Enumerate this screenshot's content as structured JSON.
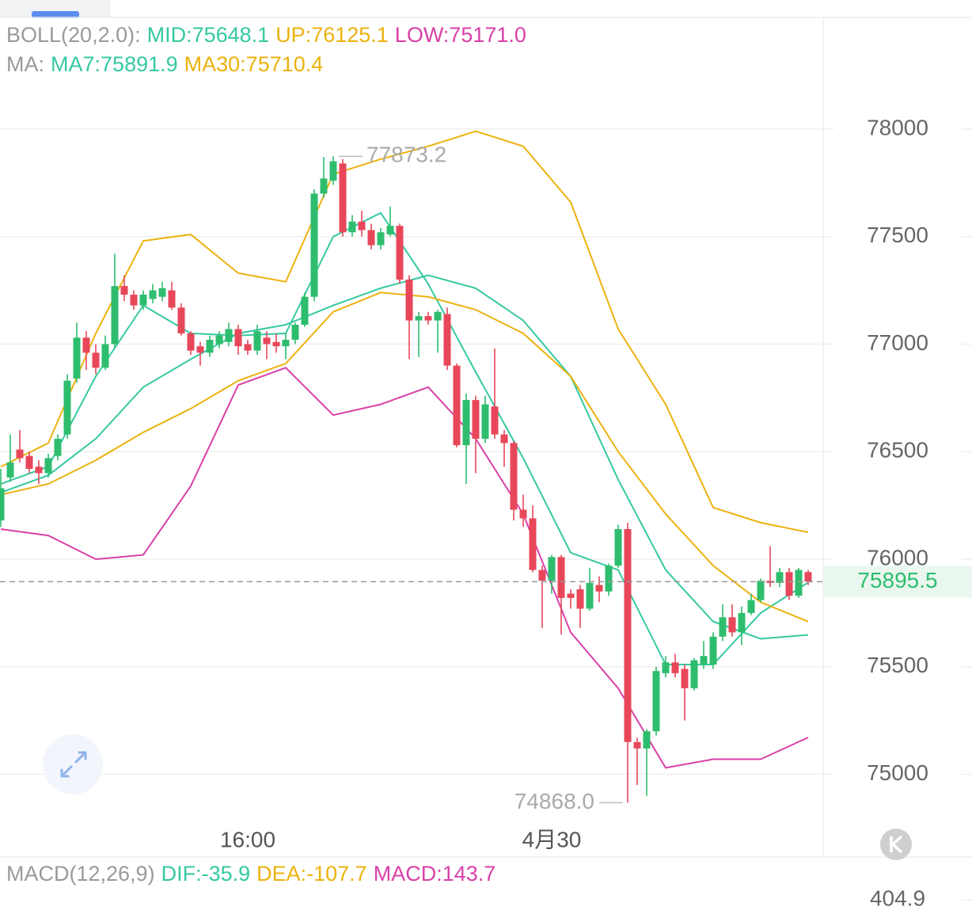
{
  "chart_data": {
    "type": "candlestick",
    "categories": [
      null,
      null,
      null,
      null,
      null,
      null,
      null,
      null,
      null,
      null,
      null,
      null,
      null,
      null,
      null,
      null,
      null,
      null,
      null,
      null,
      null,
      null,
      null,
      null,
      null,
      null,
      "16:00",
      null,
      null,
      null,
      null,
      null,
      null,
      null,
      null,
      null,
      null,
      null,
      null,
      null,
      null,
      null,
      null,
      null,
      null,
      null,
      null,
      null,
      null,
      null,
      null,
      null,
      null,
      null,
      null,
      null,
      null,
      null,
      "4月30",
      null,
      null,
      null,
      null,
      null,
      null,
      null,
      null,
      null,
      null,
      null,
      null,
      null,
      null,
      null,
      null,
      null,
      null,
      null,
      null,
      null,
      null,
      null,
      null,
      null,
      null,
      null
    ],
    "open": [
      76180,
      76380,
      76510,
      76480,
      76430,
      76400,
      76480,
      76580,
      76840,
      77030,
      76960,
      76890,
      77000,
      77270,
      77230,
      77180,
      77210,
      77220,
      77250,
      77170,
      77050,
      76990,
      76960,
      77000,
      77010,
      77070,
      77000,
      76970,
      77030,
      77010,
      76990,
      77020,
      77090,
      77220,
      77700,
      77760,
      77840,
      77520,
      77570,
      77530,
      77460,
      77510,
      77550,
      77300,
      77110,
      77130,
      77110,
      77140,
      76900,
      76530,
      76740,
      76560,
      76710,
      76580,
      76540,
      76230,
      76190,
      75950,
      75900,
      76010,
      75840,
      75860,
      75770,
      75880,
      75850,
      75970,
      76140,
      75150,
      75120,
      75200,
      75470,
      75520,
      75490,
      75400,
      75510,
      75510,
      75640,
      75730,
      75660,
      75750,
      75810,
      75900,
      75890,
      75940,
      75830,
      75940
    ],
    "high": [
      76420,
      76580,
      76600,
      76500,
      76460,
      76490,
      76580,
      76860,
      77100,
      77060,
      77000,
      77040,
      77420,
      77320,
      77250,
      77250,
      77280,
      77290,
      77290,
      77190,
      77060,
      77010,
      77040,
      77060,
      77100,
      77090,
      77020,
      77090,
      77060,
      77050,
      77050,
      77100,
      77240,
      77720,
      77870,
      77873.2,
      77860,
      77600,
      77620,
      77560,
      77540,
      77640,
      77560,
      77320,
      77150,
      77150,
      77160,
      77170,
      76910,
      76770,
      76760,
      76760,
      76980,
      76600,
      76550,
      76300,
      76250,
      75970,
      76020,
      76020,
      75860,
      75880,
      75960,
      75920,
      75980,
      76160,
      76170,
      75170,
      75210,
      75500,
      75550,
      75560,
      75510,
      75540,
      75620,
      75660,
      75790,
      75790,
      75780,
      75840,
      75910,
      76060,
      75960,
      75960,
      75960,
      75950
    ],
    "low": [
      76150,
      76360,
      76450,
      76400,
      76350,
      76380,
      76460,
      76560,
      76820,
      76880,
      76860,
      76880,
      76980,
      77200,
      77160,
      77160,
      77190,
      77200,
      77160,
      77040,
      76950,
      76900,
      76940,
      76980,
      76990,
      76950,
      76950,
      76950,
      76930,
      76960,
      76930,
      77000,
      77080,
      77200,
      77680,
      77740,
      77500,
      77500,
      77500,
      77440,
      77440,
      77500,
      77280,
      76930,
      76940,
      77090,
      76960,
      76880,
      76520,
      76350,
      76400,
      76540,
      76560,
      76430,
      76180,
      76150,
      75940,
      75680,
      75840,
      75650,
      75770,
      75680,
      75760,
      75800,
      75830,
      75960,
      74868,
      74950,
      74900,
      75180,
      75450,
      75450,
      75250,
      75390,
      75490,
      75490,
      75620,
      75640,
      75600,
      75740,
      75800,
      75870,
      75870,
      75810,
      75820,
      75880
    ],
    "close": [
      76330,
      76450,
      76470,
      76420,
      76400,
      76470,
      76560,
      76830,
      77030,
      76960,
      76890,
      77000,
      77270,
      77230,
      77180,
      77230,
      77250,
      77260,
      77170,
      77050,
      76970,
      76960,
      77020,
      77040,
      77070,
      76990,
      76970,
      77060,
      77000,
      76990,
      77020,
      77090,
      77220,
      77700,
      77770,
      77850,
      77520,
      77570,
      77530,
      77460,
      77520,
      77550,
      77300,
      77110,
      77130,
      77110,
      77150,
      76900,
      76530,
      76740,
      76560,
      76720,
      76580,
      76540,
      76230,
      76190,
      75950,
      75900,
      76010,
      75820,
      75820,
      75770,
      75890,
      75850,
      75970,
      76140,
      75150,
      75120,
      75200,
      75480,
      75520,
      75470,
      75400,
      75530,
      75550,
      75640,
      75730,
      75660,
      75750,
      75810,
      75900,
      75890,
      75940,
      75830,
      75950,
      75895.5
    ],
    "up_color": "#2ebd6e",
    "down_color": "#e8475a",
    "ylim": [
      74770,
      78600
    ],
    "yticks": [
      75000,
      75500,
      76000,
      76500,
      77000,
      77500,
      78000
    ],
    "grid": true,
    "last_price": 75895.5,
    "max_label": 77873.2,
    "min_label": {
      "value": 74868.0,
      "label": "74868.0"
    },
    "overlays": [
      {
        "color": "#ecb20f",
        "x": [
          0,
          5,
          10,
          15,
          20,
          25,
          30,
          35,
          40,
          45,
          50,
          55,
          60,
          65,
          70,
          75,
          80,
          85
        ],
        "values": [
          76430,
          76540,
          77050,
          77480,
          77510,
          77330,
          77290,
          77790,
          77860,
          77920,
          77990,
          77920,
          77660,
          77070,
          76720,
          76240,
          76170,
          76125.1
        ]
      },
      {
        "color": "#36c9a2",
        "x": [
          0,
          5,
          10,
          15,
          20,
          25,
          30,
          35,
          40,
          45,
          50,
          55,
          60,
          65,
          70,
          75,
          80,
          85
        ],
        "values": [
          76310,
          76390,
          76560,
          76800,
          76930,
          77050,
          77090,
          77180,
          77260,
          77320,
          77260,
          77110,
          76850,
          76370,
          75950,
          75710,
          75630,
          75648.1
        ]
      },
      {
        "color": "#d940a8",
        "x": [
          0,
          5,
          10,
          15,
          20,
          25,
          30,
          35,
          40,
          45,
          50,
          55,
          60,
          65,
          70,
          75,
          80,
          85
        ],
        "values": [
          76140,
          76110,
          76000,
          76020,
          76340,
          76810,
          76890,
          76670,
          76720,
          76800,
          76560,
          76210,
          75660,
          75400,
          75030,
          75070,
          75070,
          75171.0
        ]
      },
      {
        "color": "#36c9a2",
        "x": [
          0,
          5,
          10,
          15,
          20,
          25,
          30,
          35,
          40,
          45,
          50,
          55,
          60,
          65,
          70,
          75,
          80,
          85
        ],
        "values": [
          76350,
          76430,
          76850,
          77180,
          77050,
          77040,
          77050,
          77500,
          77610,
          77280,
          76870,
          76470,
          76030,
          75950,
          75510,
          75510,
          75750,
          75891.9
        ]
      },
      {
        "color": "#ecb20f",
        "x": [
          0,
          5,
          10,
          15,
          20,
          25,
          30,
          35,
          40,
          45,
          50,
          55,
          60,
          65,
          70,
          75,
          80,
          85
        ],
        "values": [
          76300,
          76350,
          76460,
          76590,
          76700,
          76830,
          76910,
          77150,
          77240,
          77220,
          77160,
          77050,
          76850,
          76500,
          76210,
          75970,
          75800,
          75710.4
        ]
      }
    ],
    "indicator_headers": [
      {
        "title": "BOLL(20,2.0):",
        "readouts": [
          {
            "text": "MID:75648.1",
            "color": "#36c9a2"
          },
          {
            "text": "UP:76125.1",
            "color": "#ecb20f"
          },
          {
            "text": "LOW:75171.0",
            "color": "#d940a8"
          }
        ]
      },
      {
        "title": "MA:",
        "readouts": [
          {
            "text": "MA7:75891.9",
            "color": "#36c9a2"
          },
          {
            "text": "MA30:75710.4",
            "color": "#ecb20f"
          }
        ]
      }
    ]
  },
  "macd_panel": {
    "title": "MACD(12,26,9)",
    "readouts": [
      {
        "text": "DIF:-35.9",
        "color": "#36c9a2"
      },
      {
        "text": "DEA:-107.7",
        "color": "#ecb20f"
      },
      {
        "text": "MACD:143.7",
        "color": "#d940a8"
      }
    ],
    "yticks": [
      404.9
    ]
  }
}
